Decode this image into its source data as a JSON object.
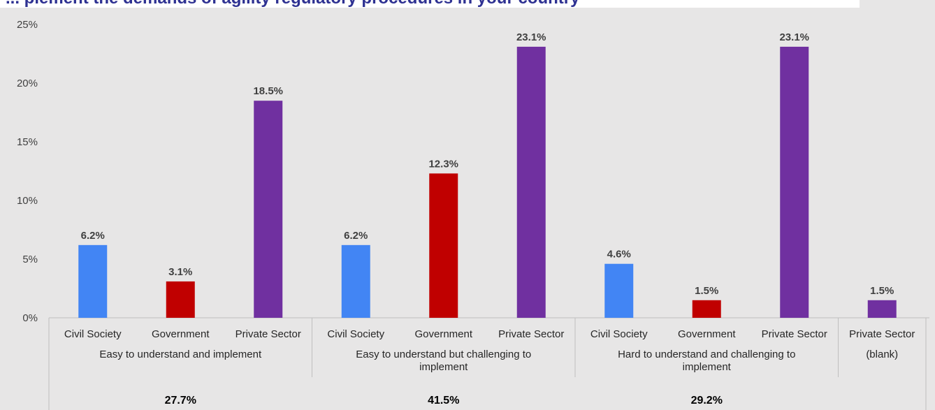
{
  "chart_data": {
    "type": "bar",
    "title": "... plement the demands of agility regulatory procedures in your country",
    "ylim": [
      0,
      25
    ],
    "y_ticks": [
      "0%",
      "5%",
      "10%",
      "15%",
      "20%",
      "25%"
    ],
    "grid": false,
    "groups": [
      {
        "label_lines": [
          "Easy to understand and implement"
        ],
        "total": "27.7%",
        "bars": [
          {
            "category": "Civil Society",
            "value": 6.2,
            "label": "6.2%",
            "color": "#4285f4"
          },
          {
            "category": "Government",
            "value": 3.1,
            "label": "3.1%",
            "color": "#c00000"
          },
          {
            "category": "Private Sector",
            "value": 18.5,
            "label": "18.5%",
            "color": "#7030a0"
          }
        ]
      },
      {
        "label_lines": [
          "Easy to understand but challenging to",
          "implement"
        ],
        "total": "41.5%",
        "bars": [
          {
            "category": "Civil Society",
            "value": 6.2,
            "label": "6.2%",
            "color": "#4285f4"
          },
          {
            "category": "Government",
            "value": 12.3,
            "label": "12.3%",
            "color": "#c00000"
          },
          {
            "category": "Private Sector",
            "value": 23.1,
            "label": "23.1%",
            "color": "#7030a0"
          }
        ]
      },
      {
        "label_lines": [
          "Hard to understand and challenging to",
          "implement"
        ],
        "total": "29.2%",
        "bars": [
          {
            "category": "Civil Society",
            "value": 4.6,
            "label": "4.6%",
            "color": "#4285f4"
          },
          {
            "category": "Government",
            "value": 1.5,
            "label": "1.5%",
            "color": "#c00000"
          },
          {
            "category": "Private Sector",
            "value": 23.1,
            "label": "23.1%",
            "color": "#7030a0"
          }
        ]
      },
      {
        "label_lines": [
          "(blank)"
        ],
        "total": "",
        "bars": [
          {
            "category": "Private Sector",
            "value": 1.5,
            "label": "1.5%",
            "color": "#7030a0"
          }
        ]
      }
    ]
  },
  "colors": {
    "background": "#e7e6e6",
    "title": "#2e3192",
    "axis_line": "#bfbfbf"
  }
}
